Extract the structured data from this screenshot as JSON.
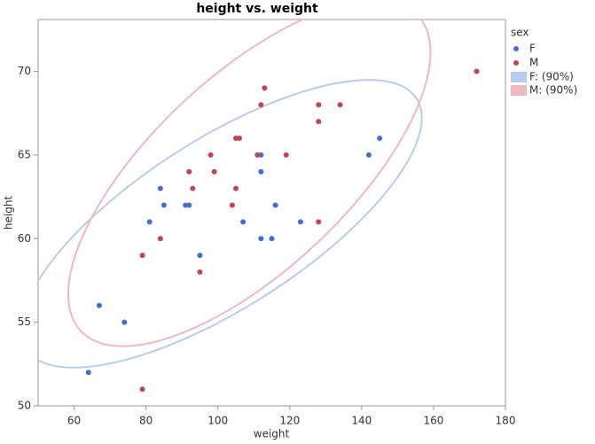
{
  "chart_data": {
    "type": "scatter",
    "title": "height vs. weight",
    "x_label": "weight",
    "y_label": "height",
    "xlim": [
      50,
      180
    ],
    "ylim": [
      50,
      73.1
    ],
    "xticks": [
      60,
      80,
      100,
      120,
      140,
      160,
      180
    ],
    "yticks": [
      50,
      55,
      60,
      65,
      70
    ],
    "legend_title": "sex",
    "legend_position": "right",
    "series": [
      {
        "name": "F",
        "color": "#3f6fd6",
        "ellipse_label": "F: (90%)",
        "ellipse_color": "#b8cdee",
        "x": [
          64,
          67,
          74,
          81,
          84,
          85,
          91,
          92,
          95,
          107,
          112,
          112,
          112,
          115,
          116,
          123,
          142,
          145
        ],
        "values": [
          52,
          56,
          55,
          61,
          63,
          62,
          62,
          62,
          59,
          61,
          65,
          64,
          60,
          60,
          62,
          61,
          65,
          66
        ]
      },
      {
        "name": "M",
        "color": "#c8414f",
        "ellipse_label": "M: (90%)",
        "ellipse_color": "#f0b8c0",
        "x": [
          79,
          79,
          84,
          92,
          93,
          95,
          98,
          99,
          104,
          105,
          105,
          106,
          111,
          112,
          113,
          119,
          128,
          128,
          128,
          134,
          172
        ],
        "values": [
          51,
          59,
          60,
          64,
          63,
          58,
          65,
          64,
          62,
          63,
          66,
          66,
          65,
          68,
          69,
          65,
          68,
          67,
          61,
          68,
          70
        ]
      }
    ]
  }
}
